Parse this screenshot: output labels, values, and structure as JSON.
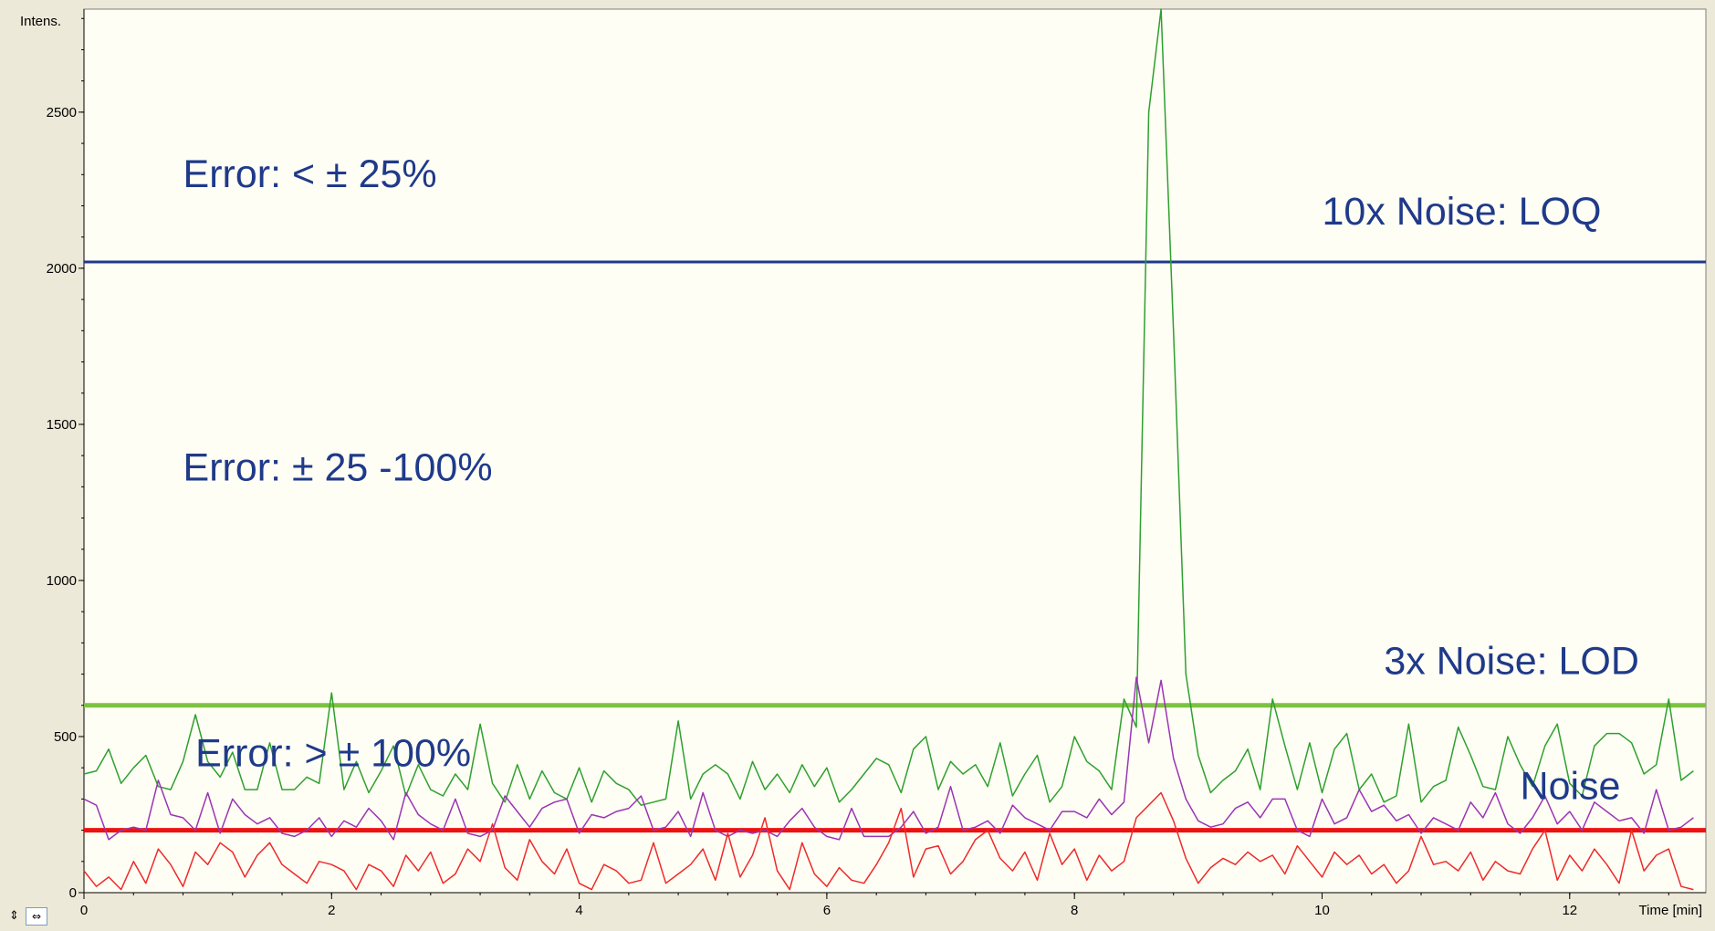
{
  "chart_data": {
    "type": "line",
    "xlabel": "Time [min]",
    "ylabel": "Intens.",
    "xlim": [
      0,
      13.1
    ],
    "ylim": [
      0,
      2830
    ],
    "x_ticks": [
      0,
      2,
      4,
      6,
      8,
      10,
      12
    ],
    "y_ticks": [
      0,
      500,
      1000,
      1500,
      2000,
      2500
    ],
    "x_minor_step": 0.4,
    "y_minor_step": 100,
    "grid": false,
    "colors": {
      "plot_bg": "#fffef5",
      "frame_bg": "#ece9d8",
      "green_trace": "#2ea02e",
      "purple_trace": "#9a35b4",
      "red_trace": "#ee2a2a",
      "loq_line": "#1f3a8a",
      "lod_line": "#7cc242",
      "noise_line": "#ee1111",
      "annotation": "#1f3a8a"
    },
    "reference_lines": [
      {
        "label": "10x Noise: LOQ",
        "y": 2020,
        "color": "#1f3a8a"
      },
      {
        "label": "3x Noise: LOD",
        "y": 600,
        "color": "#7cc242"
      },
      {
        "label": "Noise",
        "y": 200,
        "color": "#ee1111"
      }
    ],
    "annotations": [
      {
        "text": "Error: < ± 25%",
        "x": 0.8,
        "y": 2260
      },
      {
        "text": "Error: ± 25 -100%",
        "x": 0.8,
        "y": 1320
      },
      {
        "text": "Error: > ± 100%",
        "x": 0.9,
        "y": 405
      },
      {
        "text": "10x Noise: LOQ",
        "x": 10.0,
        "y": 2140,
        "anchor": "start"
      },
      {
        "text": "3x Noise: LOD",
        "x": 10.5,
        "y": 700,
        "anchor": "start"
      },
      {
        "text": "Noise",
        "x": 11.6,
        "y": 300,
        "anchor": "start"
      }
    ],
    "series": [
      {
        "color": "#2ea02e",
        "x": [
          0.0,
          0.1,
          0.2,
          0.3,
          0.4,
          0.5,
          0.6,
          0.7,
          0.8,
          0.9,
          1.0,
          1.1,
          1.2,
          1.3,
          1.4,
          1.5,
          1.6,
          1.7,
          1.8,
          1.9,
          2.0,
          2.1,
          2.2,
          2.3,
          2.4,
          2.5,
          2.6,
          2.7,
          2.8,
          2.9,
          3.0,
          3.1,
          3.2,
          3.3,
          3.4,
          3.5,
          3.6,
          3.7,
          3.8,
          3.9,
          4.0,
          4.1,
          4.2,
          4.3,
          4.4,
          4.5,
          4.6,
          4.7,
          4.8,
          4.9,
          5.0,
          5.1,
          5.2,
          5.3,
          5.4,
          5.5,
          5.6,
          5.7,
          5.8,
          5.9,
          6.0,
          6.1,
          6.2,
          6.3,
          6.4,
          6.5,
          6.6,
          6.7,
          6.8,
          6.9,
          7.0,
          7.1,
          7.2,
          7.3,
          7.4,
          7.5,
          7.6,
          7.7,
          7.8,
          7.9,
          8.0,
          8.1,
          8.2,
          8.3,
          8.4,
          8.5,
          8.6,
          8.7,
          8.8,
          8.9,
          9.0,
          9.1,
          9.2,
          9.3,
          9.4,
          9.5,
          9.6,
          9.7,
          9.8,
          9.9,
          10.0,
          10.1,
          10.2,
          10.3,
          10.4,
          10.5,
          10.6,
          10.7,
          10.8,
          10.9,
          11.0,
          11.1,
          11.2,
          11.3,
          11.4,
          11.5,
          11.6,
          11.7,
          11.8,
          11.9,
          12.0,
          12.1,
          12.2,
          12.3,
          12.4,
          12.5,
          12.6,
          12.7,
          12.8,
          12.9,
          13.0
        ],
        "y": [
          380,
          390,
          460,
          350,
          400,
          440,
          340,
          330,
          420,
          570,
          420,
          370,
          450,
          330,
          330,
          480,
          330,
          330,
          370,
          350,
          640,
          330,
          420,
          320,
          390,
          470,
          310,
          410,
          330,
          310,
          380,
          330,
          540,
          350,
          290,
          410,
          300,
          390,
          320,
          300,
          400,
          290,
          390,
          350,
          330,
          280,
          290,
          300,
          550,
          300,
          380,
          410,
          380,
          300,
          420,
          330,
          380,
          320,
          410,
          340,
          400,
          290,
          330,
          380,
          430,
          410,
          320,
          460,
          500,
          330,
          420,
          380,
          410,
          340,
          480,
          310,
          380,
          440,
          290,
          340,
          500,
          420,
          390,
          330,
          620,
          530,
          2500,
          2830,
          1800,
          700,
          440,
          320,
          360,
          390,
          460,
          330,
          620,
          470,
          330,
          480,
          320,
          460,
          510,
          330,
          380,
          290,
          310,
          540,
          290,
          340,
          360,
          530,
          440,
          340,
          330,
          500,
          410,
          340,
          470,
          540,
          350,
          310,
          470,
          510,
          510,
          480,
          380,
          410,
          620,
          360,
          390
        ]
      },
      {
        "color": "#9a35b4",
        "x": [
          0.0,
          0.1,
          0.2,
          0.3,
          0.4,
          0.5,
          0.6,
          0.7,
          0.8,
          0.9,
          1.0,
          1.1,
          1.2,
          1.3,
          1.4,
          1.5,
          1.6,
          1.7,
          1.8,
          1.9,
          2.0,
          2.1,
          2.2,
          2.3,
          2.4,
          2.5,
          2.6,
          2.7,
          2.8,
          2.9,
          3.0,
          3.1,
          3.2,
          3.3,
          3.4,
          3.5,
          3.6,
          3.7,
          3.8,
          3.9,
          4.0,
          4.1,
          4.2,
          4.3,
          4.4,
          4.5,
          4.6,
          4.7,
          4.8,
          4.9,
          5.0,
          5.1,
          5.2,
          5.3,
          5.4,
          5.5,
          5.6,
          5.7,
          5.8,
          5.9,
          6.0,
          6.1,
          6.2,
          6.3,
          6.4,
          6.5,
          6.6,
          6.7,
          6.8,
          6.9,
          7.0,
          7.1,
          7.2,
          7.3,
          7.4,
          7.5,
          7.6,
          7.7,
          7.8,
          7.9,
          8.0,
          8.1,
          8.2,
          8.3,
          8.4,
          8.5,
          8.6,
          8.7,
          8.8,
          8.9,
          9.0,
          9.1,
          9.2,
          9.3,
          9.4,
          9.5,
          9.6,
          9.7,
          9.8,
          9.9,
          10.0,
          10.1,
          10.2,
          10.3,
          10.4,
          10.5,
          10.6,
          10.7,
          10.8,
          10.9,
          11.0,
          11.1,
          11.2,
          11.3,
          11.4,
          11.5,
          11.6,
          11.7,
          11.8,
          11.9,
          12.0,
          12.1,
          12.2,
          12.3,
          12.4,
          12.5,
          12.6,
          12.7,
          12.8,
          12.9,
          13.0
        ],
        "y": [
          300,
          280,
          170,
          200,
          210,
          200,
          360,
          250,
          240,
          200,
          320,
          190,
          300,
          250,
          220,
          240,
          190,
          180,
          200,
          240,
          180,
          230,
          210,
          270,
          230,
          170,
          320,
          250,
          220,
          200,
          300,
          190,
          180,
          200,
          310,
          260,
          210,
          270,
          290,
          300,
          190,
          250,
          240,
          260,
          270,
          310,
          200,
          210,
          260,
          180,
          320,
          200,
          180,
          200,
          190,
          200,
          180,
          230,
          270,
          210,
          180,
          170,
          270,
          180,
          180,
          180,
          210,
          260,
          190,
          210,
          340,
          200,
          210,
          230,
          190,
          280,
          240,
          220,
          200,
          260,
          260,
          240,
          300,
          250,
          290,
          690,
          480,
          680,
          430,
          300,
          230,
          210,
          220,
          270,
          290,
          240,
          300,
          300,
          200,
          180,
          300,
          220,
          240,
          330,
          260,
          280,
          230,
          250,
          190,
          240,
          220,
          200,
          290,
          240,
          320,
          220,
          190,
          240,
          310,
          220,
          260,
          200,
          290,
          260,
          230,
          240,
          190,
          330,
          200,
          210,
          240
        ]
      },
      {
        "color": "#ee2a2a",
        "x": [
          0.0,
          0.1,
          0.2,
          0.3,
          0.4,
          0.5,
          0.6,
          0.7,
          0.8,
          0.9,
          1.0,
          1.1,
          1.2,
          1.3,
          1.4,
          1.5,
          1.6,
          1.7,
          1.8,
          1.9,
          2.0,
          2.1,
          2.2,
          2.3,
          2.4,
          2.5,
          2.6,
          2.7,
          2.8,
          2.9,
          3.0,
          3.1,
          3.2,
          3.3,
          3.4,
          3.5,
          3.6,
          3.7,
          3.8,
          3.9,
          4.0,
          4.1,
          4.2,
          4.3,
          4.4,
          4.5,
          4.6,
          4.7,
          4.8,
          4.9,
          5.0,
          5.1,
          5.2,
          5.3,
          5.4,
          5.5,
          5.6,
          5.7,
          5.8,
          5.9,
          6.0,
          6.1,
          6.2,
          6.3,
          6.4,
          6.5,
          6.6,
          6.7,
          6.8,
          6.9,
          7.0,
          7.1,
          7.2,
          7.3,
          7.4,
          7.5,
          7.6,
          7.7,
          7.8,
          7.9,
          8.0,
          8.1,
          8.2,
          8.3,
          8.4,
          8.5,
          8.6,
          8.7,
          8.8,
          8.9,
          9.0,
          9.1,
          9.2,
          9.3,
          9.4,
          9.5,
          9.6,
          9.7,
          9.8,
          9.9,
          10.0,
          10.1,
          10.2,
          10.3,
          10.4,
          10.5,
          10.6,
          10.7,
          10.8,
          10.9,
          11.0,
          11.1,
          11.2,
          11.3,
          11.4,
          11.5,
          11.6,
          11.7,
          11.8,
          11.9,
          12.0,
          12.1,
          12.2,
          12.3,
          12.4,
          12.5,
          12.6,
          12.7,
          12.8,
          12.9,
          13.0
        ],
        "y": [
          70,
          20,
          50,
          10,
          100,
          30,
          140,
          90,
          20,
          130,
          90,
          160,
          130,
          50,
          120,
          160,
          90,
          60,
          30,
          100,
          90,
          70,
          10,
          90,
          70,
          20,
          120,
          70,
          130,
          30,
          60,
          140,
          100,
          220,
          80,
          40,
          170,
          100,
          60,
          140,
          30,
          10,
          90,
          70,
          30,
          40,
          160,
          30,
          60,
          90,
          140,
          40,
          190,
          50,
          120,
          240,
          70,
          10,
          160,
          60,
          20,
          80,
          40,
          30,
          90,
          160,
          270,
          50,
          140,
          150,
          60,
          100,
          170,
          200,
          110,
          70,
          130,
          40,
          190,
          90,
          140,
          40,
          120,
          70,
          100,
          240,
          280,
          320,
          230,
          110,
          30,
          80,
          110,
          90,
          130,
          100,
          120,
          60,
          150,
          100,
          50,
          130,
          90,
          120,
          60,
          90,
          30,
          70,
          180,
          90,
          100,
          70,
          130,
          40,
          100,
          70,
          60,
          140,
          200,
          40,
          120,
          70,
          140,
          90,
          30,
          200,
          70,
          120,
          140,
          20,
          10
        ]
      }
    ]
  },
  "controls": {
    "scroll_v_glyph": "⇕",
    "scroll_h_glyph": "⇔"
  }
}
